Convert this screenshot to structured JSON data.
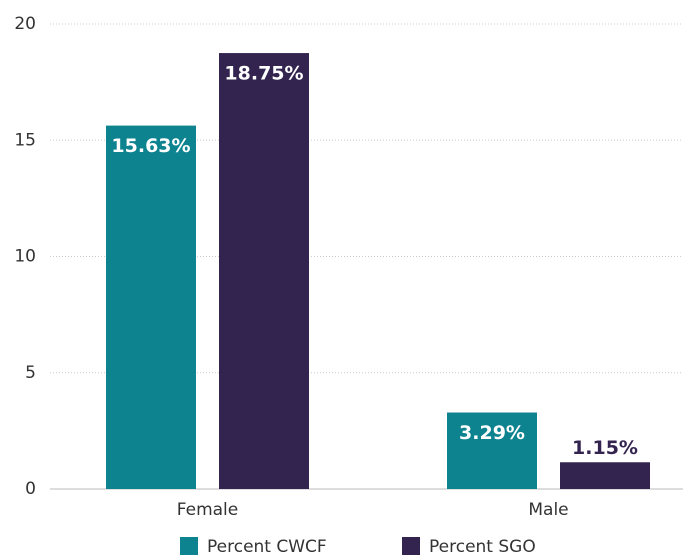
{
  "chart_data": {
    "type": "bar",
    "categories": [
      "Female",
      "Male"
    ],
    "series": [
      {
        "name": "Percent CWCF",
        "color": "#0e8390",
        "values": [
          15.63,
          3.29
        ],
        "value_labels": [
          "15.63%",
          "3.29%"
        ]
      },
      {
        "name": "Percent SGO",
        "color": "#33234f",
        "values": [
          18.75,
          1.15
        ],
        "value_labels": [
          "18.75%",
          "1.15%"
        ]
      }
    ],
    "ylim": [
      0,
      20
    ],
    "yticks": [
      0,
      5,
      10,
      15,
      20
    ],
    "grid": true
  }
}
